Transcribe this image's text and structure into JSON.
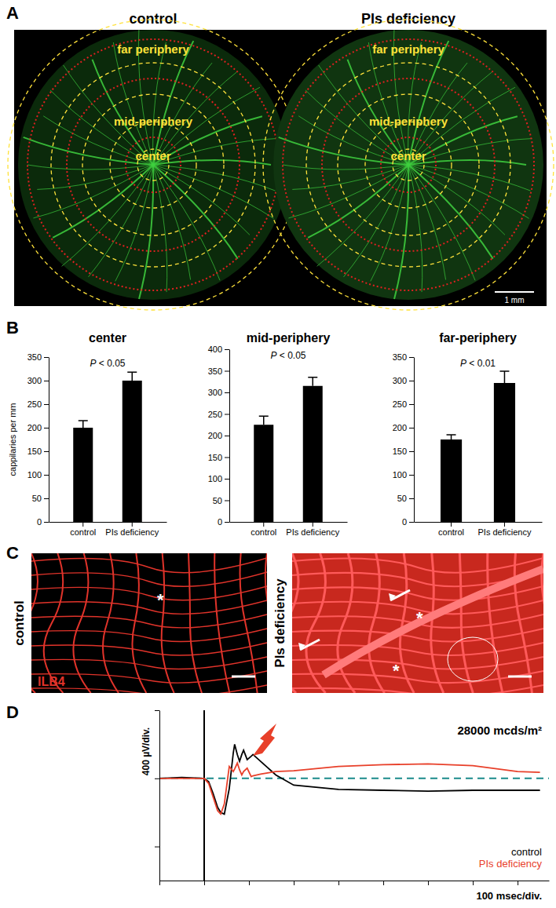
{
  "panels": {
    "A": {
      "label": "A",
      "titles": [
        "control",
        "PIs deficiency"
      ],
      "zones": [
        "far periphery",
        "mid-periphery",
        "center"
      ],
      "scale_bar": "1 mm"
    },
    "B": {
      "label": "B"
    },
    "C": {
      "label": "C",
      "titles": [
        "control",
        "PIs deficiency"
      ],
      "stain": "ILB4",
      "asterisk": "*"
    },
    "D": {
      "label": "D"
    }
  },
  "chart_data": [
    {
      "type": "bar",
      "title": "center",
      "y_label": "cappilaries per mm",
      "annotation": "P < 0.05",
      "categories": [
        "control",
        "PIs deficiency"
      ],
      "values": [
        200,
        300
      ],
      "errors": [
        15,
        18
      ],
      "color": "#000000",
      "ylim": [
        0,
        350
      ],
      "yticks": [
        0,
        50,
        100,
        150,
        200,
        250,
        300,
        350
      ]
    },
    {
      "type": "bar",
      "title": "mid-periphery",
      "annotation": "P < 0.05",
      "categories": [
        "control",
        "PIs deficiency"
      ],
      "values": [
        225,
        315
      ],
      "errors": [
        20,
        20
      ],
      "color": "#000000",
      "ylim": [
        0,
        400
      ],
      "yticks": [
        0,
        50,
        100,
        150,
        200,
        250,
        300,
        350,
        400
      ]
    },
    {
      "type": "bar",
      "title": "far-periphery",
      "annotation": "P < 0.01",
      "categories": [
        "control",
        "PIs deficiency"
      ],
      "values": [
        175,
        295
      ],
      "errors": [
        10,
        25
      ],
      "color": "#000000",
      "ylim": [
        0,
        350
      ],
      "yticks": [
        0,
        50,
        100,
        150,
        200,
        250,
        300,
        350
      ]
    },
    {
      "type": "line",
      "annotation": "28000 mcds/m²",
      "x_label": "100 msec/div.",
      "y_label": "400 µV/div.",
      "x": [
        -100,
        -50,
        0,
        10,
        20,
        30,
        37,
        45,
        56,
        65,
        68,
        74,
        79,
        84,
        88,
        96,
        105,
        109,
        126,
        160,
        200,
        300,
        400,
        500,
        600,
        700,
        750
      ],
      "series": [
        {
          "name": "control",
          "color": "#000000",
          "values": [
            0,
            5,
            0,
            -20,
            -90,
            -170,
            -200,
            -210,
            -60,
            150,
            200,
            140,
            100,
            140,
            165,
            110,
            130,
            140,
            100,
            20,
            -40,
            -65,
            -70,
            -75,
            -70,
            -70,
            -70
          ]
        },
        {
          "name": "PIs deficiency",
          "color": "#e8402a",
          "values": [
            0,
            0,
            0,
            -30,
            -110,
            -190,
            -210,
            -150,
            70,
            40,
            55,
            90,
            50,
            20,
            40,
            60,
            10,
            15,
            25,
            40,
            45,
            70,
            80,
            85,
            75,
            40,
            35
          ]
        }
      ],
      "xlim": [
        -100,
        770
      ],
      "xticks": [
        -100,
        0,
        100,
        200,
        300,
        400,
        500,
        600,
        700
      ],
      "ylim": [
        -600,
        400
      ],
      "yticks": [
        -400,
        0,
        400
      ],
      "tick_labels": false,
      "legend": "bottom-right"
    }
  ]
}
